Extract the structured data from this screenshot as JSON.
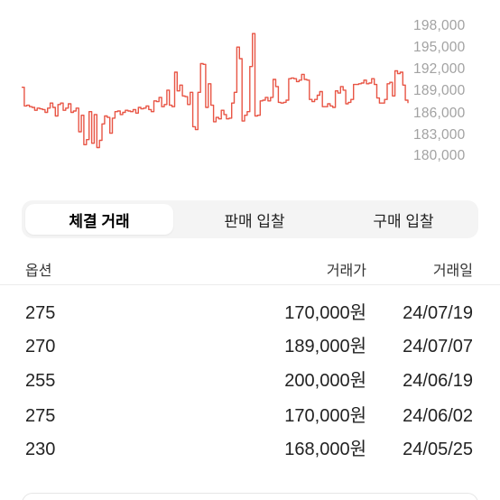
{
  "chart": {
    "y_ticks": [
      "198,000",
      "195,000",
      "192,000",
      "189,000",
      "186,000",
      "183,000",
      "180,000"
    ],
    "line_color": "#e85545"
  },
  "chart_data": {
    "type": "line",
    "title": "",
    "xlabel": "",
    "ylabel": "",
    "ylim": [
      180000,
      198000
    ],
    "y_ticks": [
      198000,
      195000,
      192000,
      189000,
      186000,
      183000,
      180000
    ],
    "series": [
      {
        "values": [
          189600,
          187000,
          187100,
          186900,
          186800,
          186400,
          186700,
          186600,
          186500,
          186100,
          186700,
          187400,
          186800,
          185600,
          187200,
          187400,
          186400,
          186700,
          187300,
          186100,
          186300,
          186700,
          183400,
          185700,
          181600,
          182300,
          186200,
          181800,
          185800,
          181200,
          182200,
          184500,
          185600,
          185400,
          183200,
          185300,
          186200,
          186300,
          185800,
          186100,
          186400,
          186300,
          186200,
          186500,
          186000,
          186800,
          186600,
          186700,
          187000,
          186500,
          186200,
          187700,
          187600,
          188200,
          186900,
          187200,
          189200,
          187100,
          186900,
          191700,
          189100,
          189900,
          188400,
          188300,
          187200,
          188900,
          184100,
          183700,
          188900,
          192900,
          192800,
          186800,
          190100,
          187100,
          184800,
          185400,
          185200,
          186400,
          185800,
          185200,
          185300,
          187400,
          188900,
          195200,
          193600,
          184900,
          185700,
          186200,
          192500,
          197100,
          185600,
          185700,
          187700,
          187800,
          188200,
          187700,
          188200,
          190700,
          189700,
          187500,
          187400,
          187500,
          187800,
          190800,
          190900,
          190800,
          190400,
          190600,
          191400,
          190700,
          190600,
          187900,
          187600,
          187900,
          188500,
          189000,
          186900,
          186900,
          187300,
          187000,
          186800,
          189100,
          188800,
          189700,
          189200,
          187300,
          187500,
          187900,
          190000,
          190000,
          190100,
          190200,
          190600,
          190100,
          190200,
          190800,
          190000,
          188100,
          187400,
          187400,
          187900,
          190100,
          190300,
          188400,
          191900,
          191500,
          191700,
          189900,
          187800,
          187400
        ]
      }
    ]
  },
  "tabs": [
    {
      "label": "체결 거래",
      "active": true
    },
    {
      "label": "판매 입찰",
      "active": false
    },
    {
      "label": "구매 입찰",
      "active": false
    }
  ],
  "table": {
    "headers": {
      "option": "옵션",
      "price": "거래가",
      "date": "거래일"
    },
    "rows": [
      {
        "option": "275",
        "price": "170,000원",
        "date": "24/07/19"
      },
      {
        "option": "270",
        "price": "189,000원",
        "date": "24/07/07"
      },
      {
        "option": "255",
        "price": "200,000원",
        "date": "24/06/19"
      },
      {
        "option": "275",
        "price": "170,000원",
        "date": "24/06/02"
      },
      {
        "option": "230",
        "price": "168,000원",
        "date": "24/05/25"
      }
    ]
  }
}
